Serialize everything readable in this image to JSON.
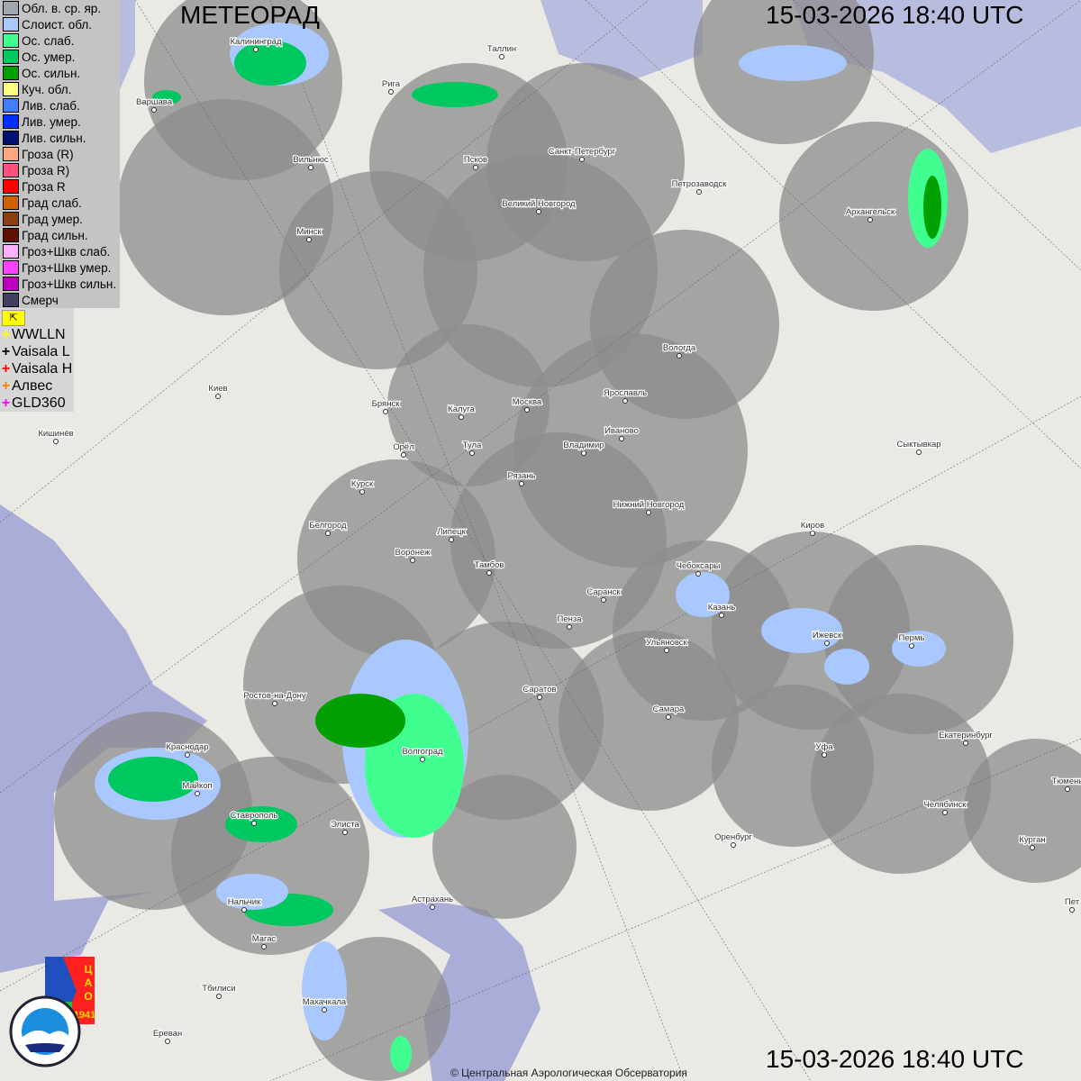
{
  "header": {
    "title": "МЕТЕОРАД",
    "datetime_top": "15-03-2026  18:40 UTC",
    "datetime_bottom": "15-03-2026  18:40 UTC"
  },
  "footer": {
    "copyright": "© Центральная Аэрологическая Обсерватория"
  },
  "legend": [
    {
      "label": "Обл. в. ср. яр.",
      "color": "#a0a8b0"
    },
    {
      "label": "Слоист. обл.",
      "color": "#a8c8ff"
    },
    {
      "label": "Ос. слаб.",
      "color": "#40ff90"
    },
    {
      "label": "Ос. умер.",
      "color": "#00c860"
    },
    {
      "label": "Ос. сильн.",
      "color": "#00a000"
    },
    {
      "label": "Куч. обл.",
      "color": "#ffff80"
    },
    {
      "label": "Лив. слаб.",
      "color": "#4080ff"
    },
    {
      "label": "Лив. умер.",
      "color": "#0030ff"
    },
    {
      "label": "Лив. сильн.",
      "color": "#001070"
    },
    {
      "label": "Гроза (R)",
      "color": "#ffa880"
    },
    {
      "label": "Гроза R)",
      "color": "#ff5080"
    },
    {
      "label": "Гроза R",
      "color": "#ff0000"
    },
    {
      "label": "Град слаб.",
      "color": "#d06000"
    },
    {
      "label": "Град умер.",
      "color": "#8a4010"
    },
    {
      "label": "Град сильн.",
      "color": "#601000"
    },
    {
      "label": "Гроз+Шкв слаб.",
      "color": "#ffb0ff"
    },
    {
      "label": "Гроз+Шкв умер.",
      "color": "#ff40ff"
    },
    {
      "label": "Гроз+Шкв сильн.",
      "color": "#c000c0"
    },
    {
      "label": "Смерч",
      "color": "#404060"
    }
  ],
  "lightning": [
    {
      "label": "WWLLN",
      "color": "#ffff00"
    },
    {
      "label": "Vaisala L",
      "color": "#000000"
    },
    {
      "label": "Vaisala H",
      "color": "#ff0000"
    },
    {
      "label": "Алвес",
      "color": "#ff8000"
    },
    {
      "label": "GLD360",
      "color": "#ff00ff"
    }
  ],
  "logos": {
    "cao": "ЦАО 1941",
    "roshydromet": "РОСГИДРОМЕТ ROSHYDROMET"
  },
  "cities": [
    "Калининград",
    "Варшава",
    "Рига",
    "Таллин",
    "Вильнюс",
    "Псков",
    "Санкт-Петербург",
    "Петрозаводск",
    "Архангельск",
    "Великий Новгород",
    "Минск",
    "Вологда",
    "Киев",
    "Брянск",
    "Калуга",
    "Москва",
    "Ярославль",
    "Иваново",
    "Владимир",
    "Кишинёв",
    "Орёл",
    "Тула",
    "Сыктывкар",
    "Рязань",
    "Курск",
    "Нижний Новгород",
    "Белгород",
    "Липецк",
    "Киров",
    "Воронеж",
    "Тамбов",
    "Чебоксары",
    "Саранск",
    "Казань",
    "Пенза",
    "Ижевск",
    "Пермь",
    "Ульяновск",
    "Саратов",
    "Ростов-на-Дону",
    "Самара",
    "Краснодар",
    "Волгоград",
    "Уфа",
    "Екатеринбург",
    "Майкоп",
    "Тюмень",
    "Челябинск",
    "Ставрополь",
    "Элиста",
    "Оренбург",
    "Курган",
    "Астрахань",
    "Нальчик",
    "Пет",
    "Магас",
    "Тбилиси",
    "Махачкала",
    "Ереван"
  ],
  "colors": {
    "radar_coverage": "#8c8c8c",
    "water": "#a9add8",
    "land": "#ebe9e4"
  }
}
